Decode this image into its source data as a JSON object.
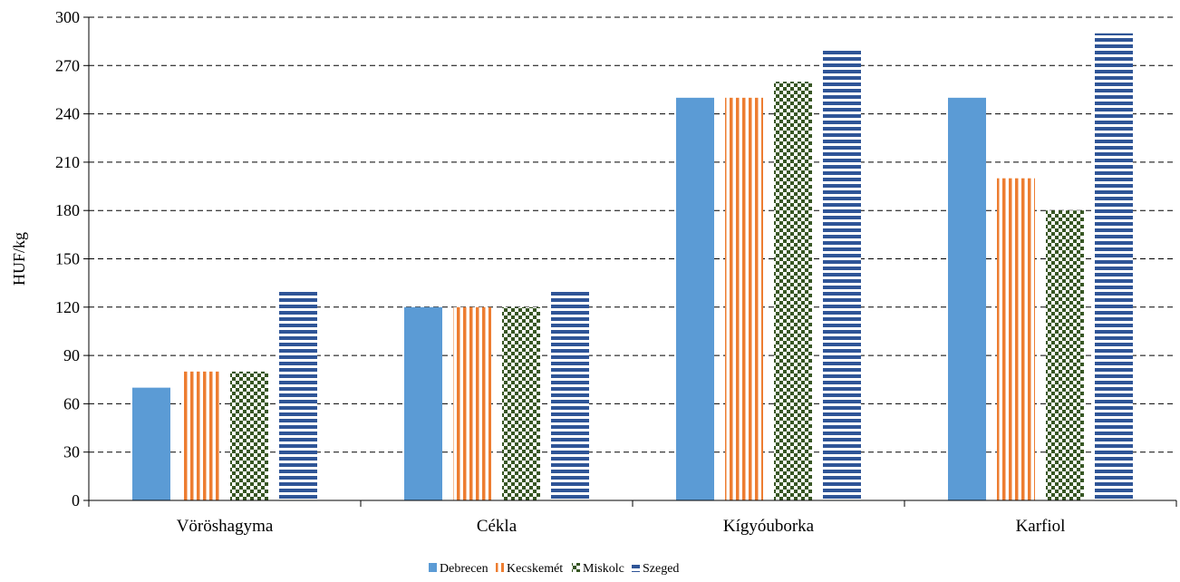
{
  "chart_data": {
    "type": "bar",
    "title": "",
    "xlabel": "",
    "ylabel": "HUF/kg",
    "ylim": [
      0,
      300
    ],
    "yticks": [
      0,
      30,
      60,
      90,
      120,
      150,
      180,
      210,
      240,
      270,
      300
    ],
    "grid": true,
    "legend_position": "bottom",
    "categories": [
      "Vöröshagyma",
      "Cékla",
      "Kígyóuborka",
      "Karfiol"
    ],
    "series": [
      {
        "name": "Debrecen",
        "values": [
          70,
          120,
          250,
          250
        ],
        "color": "#5b9bd5",
        "pattern": "solid"
      },
      {
        "name": "Kecskemét",
        "values": [
          80,
          120,
          250,
          200
        ],
        "color": "#ed7d31",
        "pattern": "vertical-stripes"
      },
      {
        "name": "Miskolc",
        "values": [
          80,
          120,
          260,
          180
        ],
        "color": "#375623",
        "pattern": "checkerboard"
      },
      {
        "name": "Szeged",
        "values": [
          130,
          130,
          280,
          290
        ],
        "color": "#2f5597",
        "pattern": "horizontal-stripes"
      }
    ]
  }
}
